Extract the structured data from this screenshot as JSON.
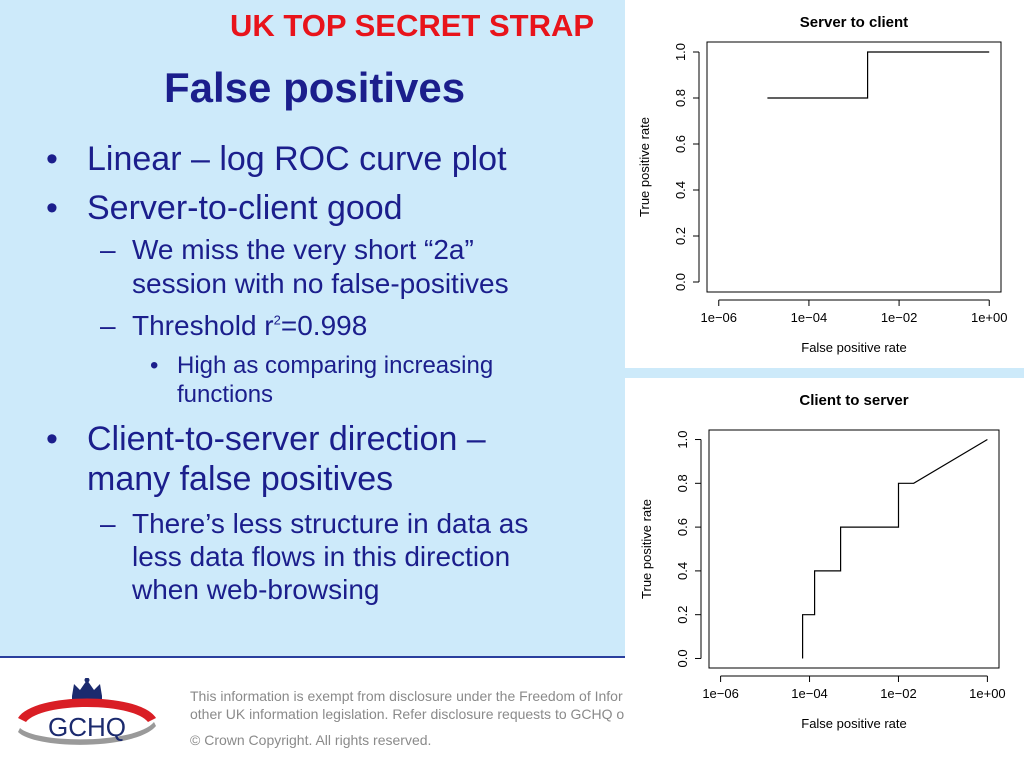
{
  "classification": "UK TOP SECRET STRAP",
  "title": "False positives",
  "bullets": {
    "b1": "Linear – log ROC curve plot",
    "b2": "Server-to-client good",
    "b2_sub1_line1": "We miss the very short “2a”",
    "b2_sub1_line2": "session with no false-positives",
    "b2_sub2_pre": "Threshold r",
    "b2_sub2_sup": "2",
    "b2_sub2_post": "=0.998",
    "b2_sub2_sub1_line1": "High as comparing increasing",
    "b2_sub2_sub1_line2": "functions",
    "b3_line1": "Client-to-server direction –",
    "b3_line2": "many false positives",
    "b3_sub1_line1": "There’s less structure in data as",
    "b3_sub1_line2": "less data flows in this direction",
    "b3_sub1_line3": "when web-browsing",
    "dash": "–",
    "dot": "•"
  },
  "footer": {
    "line1": "This information is exempt from disclosure under the Freedom of Infor",
    "line2": "other UK information legislation. Refer disclosure requests to GCHQ o",
    "copyright": "© Crown Copyright. All rights reserved.",
    "logo_text": "GCHQ"
  },
  "colors": {
    "background": "#cdeafa",
    "title": "#1b1e8c",
    "classification": "#e8141b"
  },
  "chart_data": [
    {
      "type": "line",
      "title": "Server to client",
      "xlabel": "False positive rate",
      "ylabel": "True positive rate",
      "x_scale": "log",
      "xlim": [
        1e-06,
        1
      ],
      "ylim": [
        0,
        1
      ],
      "x_ticks": [
        1e-06,
        0.0001,
        0.01,
        1
      ],
      "x_tick_labels": [
        "1e−06",
        "1e−04",
        "1e−02",
        "1e+00"
      ],
      "y_ticks": [
        0,
        0.2,
        0.4,
        0.6,
        0.8,
        1
      ],
      "y_tick_labels": [
        "0.0",
        "0.2",
        "0.4",
        "0.6",
        "0.8",
        "1.0"
      ],
      "grid": false,
      "points": [
        {
          "x": 1.2e-05,
          "y": 0.8
        },
        {
          "x": 0.002,
          "y": 0.8
        },
        {
          "x": 0.002,
          "y": 1.0
        },
        {
          "x": 1,
          "y": 1.0
        }
      ]
    },
    {
      "type": "line",
      "title": "Client to server",
      "xlabel": "False positive rate",
      "ylabel": "True positive rate",
      "x_scale": "log",
      "xlim": [
        1e-06,
        1
      ],
      "ylim": [
        0,
        1
      ],
      "x_ticks": [
        1e-06,
        0.0001,
        0.01,
        1
      ],
      "x_tick_labels": [
        "1e−06",
        "1e−04",
        "1e−02",
        "1e+00"
      ],
      "y_ticks": [
        0,
        0.2,
        0.4,
        0.6,
        0.8,
        1
      ],
      "y_tick_labels": [
        "0.0",
        "0.2",
        "0.4",
        "0.6",
        "0.8",
        "1.0"
      ],
      "grid": false,
      "points": [
        {
          "x": 7e-05,
          "y": 0.0
        },
        {
          "x": 7e-05,
          "y": 0.2
        },
        {
          "x": 0.00013,
          "y": 0.2
        },
        {
          "x": 0.00013,
          "y": 0.4
        },
        {
          "x": 0.0005,
          "y": 0.4
        },
        {
          "x": 0.0005,
          "y": 0.6
        },
        {
          "x": 0.01,
          "y": 0.6
        },
        {
          "x": 0.01,
          "y": 0.8
        },
        {
          "x": 0.022,
          "y": 0.8
        },
        {
          "x": 1,
          "y": 1.0
        }
      ]
    }
  ]
}
